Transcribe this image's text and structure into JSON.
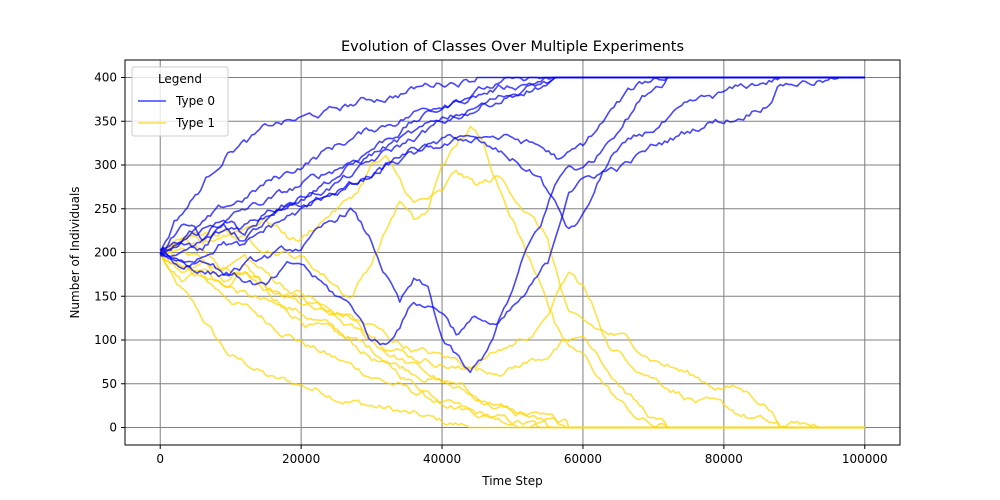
{
  "chart_data": {
    "type": "line",
    "title": "Evolution of Classes Over Multiple Experiments",
    "xlabel": "Time Step",
    "ylabel": "Number of Individuals",
    "xlim": [
      -5000,
      105000
    ],
    "ylim": [
      -20,
      420
    ],
    "xticks": [
      0,
      20000,
      40000,
      60000,
      80000,
      100000
    ],
    "yticks": [
      0,
      50,
      100,
      150,
      200,
      250,
      300,
      350,
      400
    ],
    "grid": true,
    "legend": {
      "title": "Legend",
      "placement": "top-left",
      "entries": [
        {
          "label": "Type 0",
          "color": "#0000ff"
        },
        {
          "label": "Type 1",
          "color": "#ffd700"
        }
      ]
    },
    "series": [
      {
        "type": "Type 0",
        "x": [
          0,
          2000,
          5000,
          8000,
          10000,
          13000,
          16000,
          20000,
          24000,
          27000,
          30000,
          33000,
          36000,
          40000,
          45000,
          50000,
          55000,
          58000,
          60000,
          100000
        ],
        "y": [
          200,
          235,
          265,
          300,
          320,
          330,
          345,
          352,
          360,
          368,
          375,
          380,
          387,
          395,
          400,
          400,
          400,
          400,
          400,
          400
        ]
      },
      {
        "type": "Type 0",
        "x": [
          0,
          3000,
          6000,
          9000,
          12000,
          15000,
          18000,
          21000,
          24000,
          27000,
          30000,
          33000,
          36000,
          40000,
          44000,
          50000,
          55000,
          60000,
          100000
        ],
        "y": [
          200,
          215,
          230,
          248,
          262,
          278,
          290,
          305,
          318,
          330,
          340,
          350,
          360,
          372,
          385,
          395,
          400,
          400,
          400
        ]
      },
      {
        "type": "Type 0",
        "x": [
          0,
          3000,
          6000,
          9000,
          12000,
          15000,
          18000,
          21000,
          24000,
          27000,
          30000,
          33000,
          36000,
          40000,
          44000,
          48000,
          52000,
          56000,
          100000
        ],
        "y": [
          200,
          210,
          225,
          235,
          248,
          258,
          268,
          280,
          292,
          305,
          320,
          335,
          350,
          365,
          378,
          388,
          395,
          400,
          400
        ]
      },
      {
        "type": "Type 0",
        "x": [
          0,
          3000,
          6000,
          9000,
          12000,
          15000,
          18000,
          21000,
          24000,
          27000,
          30000,
          34000,
          38000,
          42000,
          46000,
          50000,
          54000,
          58000,
          100000
        ],
        "y": [
          200,
          195,
          210,
          222,
          232,
          245,
          260,
          272,
          285,
          298,
          312,
          328,
          340,
          355,
          370,
          382,
          392,
          400,
          400
        ]
      },
      {
        "type": "Type 0",
        "x": [
          0,
          3000,
          6000,
          9000,
          12000,
          16000,
          20000,
          24000,
          28000,
          32000,
          36000,
          40000,
          44000,
          48000,
          52000,
          56000,
          58000,
          100000
        ],
        "y": [
          200,
          230,
          215,
          240,
          225,
          250,
          262,
          275,
          292,
          312,
          330,
          348,
          362,
          375,
          388,
          396,
          400,
          400
        ]
      },
      {
        "type": "Type 0",
        "x": [
          0,
          3000,
          6000,
          9000,
          12000,
          16000,
          20000,
          24000,
          28000,
          32000,
          36000,
          40000,
          43000,
          46000,
          50000,
          54000,
          56000,
          58000,
          60000,
          62000,
          64000,
          68000,
          72000,
          76000,
          80000,
          84000,
          88000,
          100000
        ],
        "y": [
          200,
          220,
          205,
          230,
          215,
          240,
          250,
          265,
          280,
          300,
          318,
          325,
          335,
          320,
          305,
          285,
          255,
          225,
          240,
          275,
          310,
          330,
          350,
          368,
          380,
          390,
          400,
          400
        ]
      },
      {
        "type": "Type 0",
        "x": [
          0,
          3000,
          6000,
          9000,
          12000,
          15000,
          18000,
          21000,
          24000,
          27000,
          30000,
          33000,
          36000,
          40000,
          43000,
          46000,
          50000,
          54000,
          57000,
          60000,
          62000,
          64000,
          66000,
          68000,
          70000,
          72000,
          100000
        ],
        "y": [
          200,
          185,
          200,
          215,
          205,
          225,
          240,
          250,
          268,
          275,
          285,
          300,
          310,
          320,
          326,
          335,
          330,
          320,
          305,
          320,
          340,
          360,
          378,
          390,
          398,
          400,
          400
        ]
      },
      {
        "type": "Type 0",
        "x": [
          0,
          3000,
          6000,
          9000,
          12000,
          16000,
          20000,
          24000,
          27000,
          30000,
          32000,
          34000,
          36000,
          38000,
          40000,
          42000,
          44000,
          46000,
          48000,
          50000,
          52000,
          54000,
          56000,
          58000,
          60000,
          62000,
          64000,
          66000,
          68000,
          70000,
          72000,
          100000
        ],
        "y": [
          200,
          190,
          180,
          175,
          185,
          195,
          205,
          230,
          250,
          210,
          175,
          140,
          165,
          155,
          100,
          80,
          58,
          80,
          120,
          155,
          200,
          230,
          275,
          300,
          295,
          310,
          335,
          355,
          375,
          390,
          400,
          400
        ]
      },
      {
        "type": "Type 0",
        "x": [
          0,
          3000,
          6000,
          9000,
          12000,
          15000,
          18000,
          20000,
          22000,
          24000,
          26000,
          28000,
          30000,
          32000,
          34000,
          36000,
          38000,
          40000,
          42000,
          45000,
          48000,
          52000,
          55000,
          58000,
          62000,
          66000,
          70000,
          74000,
          78000,
          82000,
          86000,
          88000,
          100000
        ],
        "y": [
          200,
          185,
          195,
          180,
          170,
          160,
          180,
          185,
          170,
          155,
          145,
          130,
          100,
          95,
          120,
          145,
          140,
          135,
          110,
          125,
          115,
          150,
          185,
          275,
          290,
          300,
          320,
          335,
          350,
          355,
          372,
          395,
          400
        ]
      },
      {
        "type": "Type 1",
        "x": [
          0,
          2000,
          5000,
          8000,
          10000,
          13000,
          16000,
          20000,
          24000,
          27000,
          30000,
          33000,
          36000,
          40000,
          45000,
          50000,
          55000,
          58000,
          60000,
          100000
        ],
        "y": [
          200,
          165,
          135,
          100,
          80,
          70,
          55,
          48,
          40,
          32,
          25,
          20,
          13,
          5,
          0,
          0,
          0,
          0,
          0,
          0
        ]
      },
      {
        "type": "Type 1",
        "x": [
          0,
          3000,
          6000,
          9000,
          12000,
          15000,
          18000,
          21000,
          24000,
          27000,
          30000,
          33000,
          36000,
          40000,
          44000,
          50000,
          55000,
          60000,
          100000
        ],
        "y": [
          200,
          185,
          170,
          152,
          138,
          122,
          110,
          95,
          82,
          70,
          60,
          50,
          40,
          28,
          15,
          5,
          0,
          0,
          0
        ]
      },
      {
        "type": "Type 1",
        "x": [
          0,
          3000,
          6000,
          9000,
          12000,
          15000,
          18000,
          21000,
          24000,
          27000,
          30000,
          33000,
          36000,
          40000,
          44000,
          48000,
          52000,
          56000,
          100000
        ],
        "y": [
          200,
          190,
          175,
          165,
          152,
          142,
          132,
          120,
          108,
          95,
          80,
          65,
          50,
          35,
          22,
          12,
          5,
          0,
          0
        ]
      },
      {
        "type": "Type 1",
        "x": [
          0,
          3000,
          6000,
          9000,
          12000,
          15000,
          18000,
          21000,
          24000,
          27000,
          30000,
          34000,
          38000,
          42000,
          46000,
          50000,
          54000,
          58000,
          100000
        ],
        "y": [
          200,
          205,
          190,
          178,
          168,
          155,
          140,
          128,
          115,
          102,
          88,
          72,
          60,
          45,
          30,
          18,
          8,
          0,
          0
        ]
      },
      {
        "type": "Type 1",
        "x": [
          0,
          3000,
          6000,
          9000,
          12000,
          16000,
          20000,
          24000,
          28000,
          32000,
          36000,
          40000,
          44000,
          48000,
          52000,
          56000,
          58000,
          100000
        ],
        "y": [
          200,
          170,
          185,
          160,
          175,
          150,
          138,
          125,
          108,
          88,
          70,
          52,
          38,
          25,
          12,
          4,
          0,
          0
        ]
      },
      {
        "type": "Type 1",
        "x": [
          0,
          3000,
          6000,
          9000,
          12000,
          16000,
          20000,
          24000,
          28000,
          32000,
          36000,
          40000,
          43000,
          46000,
          50000,
          54000,
          56000,
          58000,
          60000,
          62000,
          64000,
          68000,
          72000,
          76000,
          80000,
          84000,
          88000,
          100000
        ],
        "y": [
          200,
          180,
          195,
          170,
          185,
          160,
          150,
          135,
          120,
          100,
          82,
          75,
          65,
          80,
          95,
          115,
          145,
          175,
          160,
          125,
          90,
          70,
          50,
          32,
          20,
          10,
          0,
          0
        ]
      },
      {
        "type": "Type 1",
        "x": [
          0,
          3000,
          6000,
          9000,
          12000,
          15000,
          18000,
          21000,
          24000,
          27000,
          30000,
          33000,
          36000,
          40000,
          43000,
          46000,
          50000,
          54000,
          57000,
          60000,
          62000,
          64000,
          66000,
          68000,
          70000,
          72000,
          100000
        ],
        "y": [
          200,
          215,
          200,
          185,
          195,
          175,
          160,
          150,
          132,
          125,
          115,
          100,
          90,
          80,
          74,
          65,
          70,
          80,
          95,
          80,
          60,
          40,
          22,
          10,
          2,
          0,
          0
        ]
      },
      {
        "type": "Type 1",
        "x": [
          0,
          3000,
          6000,
          9000,
          12000,
          16000,
          20000,
          24000,
          27000,
          30000,
          32000,
          34000,
          36000,
          38000,
          40000,
          42000,
          44000,
          46000,
          48000,
          50000,
          52000,
          54000,
          56000,
          58000,
          60000,
          62000,
          64000,
          66000,
          68000,
          70000,
          72000,
          100000
        ],
        "y": [
          200,
          210,
          220,
          225,
          215,
          205,
          195,
          170,
          150,
          190,
          225,
          260,
          235,
          245,
          300,
          320,
          342,
          320,
          280,
          245,
          200,
          170,
          125,
          100,
          105,
          90,
          65,
          45,
          25,
          10,
          0,
          0
        ]
      },
      {
        "type": "Type 1",
        "x": [
          0,
          3000,
          6000,
          9000,
          12000,
          15000,
          18000,
          20000,
          22000,
          24000,
          26000,
          28000,
          30000,
          32000,
          34000,
          36000,
          38000,
          40000,
          42000,
          45000,
          48000,
          52000,
          55000,
          58000,
          62000,
          66000,
          70000,
          74000,
          78000,
          82000,
          86000,
          88000,
          100000
        ],
        "y": [
          200,
          215,
          205,
          220,
          230,
          240,
          220,
          215,
          230,
          245,
          255,
          270,
          300,
          305,
          280,
          255,
          260,
          265,
          290,
          275,
          285,
          250,
          215,
          125,
          110,
          100,
          80,
          65,
          50,
          45,
          28,
          5,
          0
        ]
      }
    ]
  }
}
